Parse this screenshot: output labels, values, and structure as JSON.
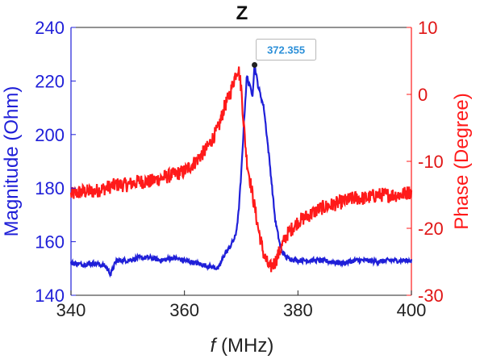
{
  "chart_data": {
    "type": "line",
    "title": "Z",
    "xlabel_italic": "f",
    "xlabel_rest": " (MHz)",
    "ylabel_left": "Magnitude (Ohm)",
    "ylabel_right": "Phase (Degree)",
    "xlim": [
      340,
      400
    ],
    "ylim_left": [
      140,
      240
    ],
    "ylim_right": [
      -30,
      10
    ],
    "x_ticks": [
      "340",
      "360",
      "380",
      "400"
    ],
    "y_ticks_left": [
      "140",
      "160",
      "180",
      "200",
      "220",
      "240"
    ],
    "y_ticks_right": [
      "-30",
      "-20",
      "-10",
      "0",
      "10"
    ],
    "colors": {
      "magnitude": "#1f1fd8",
      "phase": "#ff1a1a",
      "annotation": "#2b8fd8"
    },
    "series": [
      {
        "name": "Magnitude",
        "axis": "left",
        "x": [
          340,
          342,
          344,
          346,
          347,
          348,
          350,
          352,
          354,
          356,
          358,
          360,
          362,
          364,
          366,
          367,
          368,
          369,
          369.5,
          370,
          370.5,
          371,
          371.5,
          372,
          372.355,
          373,
          374,
          375,
          376,
          377,
          378,
          380,
          382,
          384,
          386,
          388,
          390,
          392,
          394,
          396,
          398,
          400
        ],
        "values": [
          152,
          151.5,
          152,
          151,
          148,
          153,
          153,
          154,
          154,
          153,
          154,
          153,
          152,
          151,
          150,
          155,
          158,
          162,
          170,
          185,
          205,
          222,
          218,
          215,
          226,
          218,
          210,
          190,
          168,
          157,
          154,
          153,
          153,
          153,
          152.5,
          152,
          153,
          153,
          152.5,
          153,
          153,
          153
        ]
      },
      {
        "name": "Phase",
        "axis": "right",
        "x": [
          340,
          342,
          344,
          346,
          348,
          350,
          352,
          354,
          356,
          358,
          360,
          362,
          364,
          366,
          367,
          368,
          369,
          369.5,
          370,
          370.5,
          371,
          372,
          373,
          374,
          375,
          376,
          377,
          378,
          380,
          382,
          384,
          386,
          388,
          390,
          392,
          394,
          396,
          398,
          400
        ],
        "values": [
          -15,
          -14.5,
          -14.5,
          -14,
          -13.5,
          -13.5,
          -13,
          -13,
          -12.5,
          -12,
          -11.5,
          -10,
          -8,
          -5,
          -2,
          0,
          3,
          4,
          1,
          -5,
          -10,
          -15,
          -20,
          -24,
          -26,
          -25,
          -23,
          -21,
          -19,
          -18,
          -17,
          -16.5,
          -16,
          -15.5,
          -15.5,
          -15,
          -15,
          -15,
          -14.5
        ]
      }
    ],
    "annotations": [
      {
        "text": "372.355",
        "x": 372.355,
        "y": 226,
        "axis": "left"
      }
    ]
  }
}
